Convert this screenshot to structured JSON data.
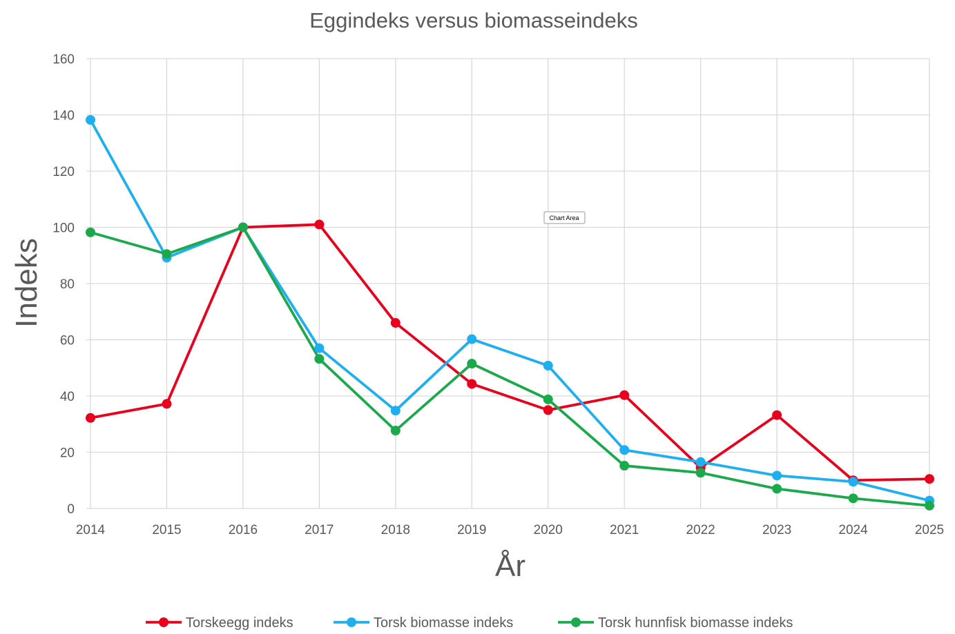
{
  "chart_data": {
    "type": "line",
    "title": "Eggindeks versus biomasseindeks",
    "xlabel": "År",
    "ylabel": "Indeks",
    "x": [
      2014,
      2015,
      2016,
      2017,
      2018,
      2019,
      2020,
      2021,
      2022,
      2023,
      2024,
      2025
    ],
    "ylim": [
      0,
      160
    ],
    "yticks": [
      0,
      20,
      40,
      60,
      80,
      100,
      120,
      140,
      160
    ],
    "grid": true,
    "legend_position": "bottom",
    "series": [
      {
        "name": "Torskeegg indeks",
        "color": "#e8001c",
        "values": [
          32.2,
          37.2,
          100,
          101,
          66,
          44.3,
          35,
          40.3,
          14.5,
          33.2,
          10,
          10.5
        ]
      },
      {
        "name": "Torsk biomasse indeks",
        "color": "#1eaff0",
        "values": [
          138.2,
          89.2,
          100,
          57,
          34.8,
          60.2,
          50.8,
          20.8,
          16.5,
          11.7,
          9.5,
          2.8
        ]
      },
      {
        "name": "Torsk hunnfisk biomasse indeks",
        "color": "#1ca94c",
        "values": [
          98.2,
          90.5,
          100,
          53.2,
          27.7,
          51.5,
          38.8,
          15.2,
          12.7,
          7,
          3.6,
          1
        ]
      }
    ]
  },
  "tooltip": {
    "label": "Chart Area"
  }
}
